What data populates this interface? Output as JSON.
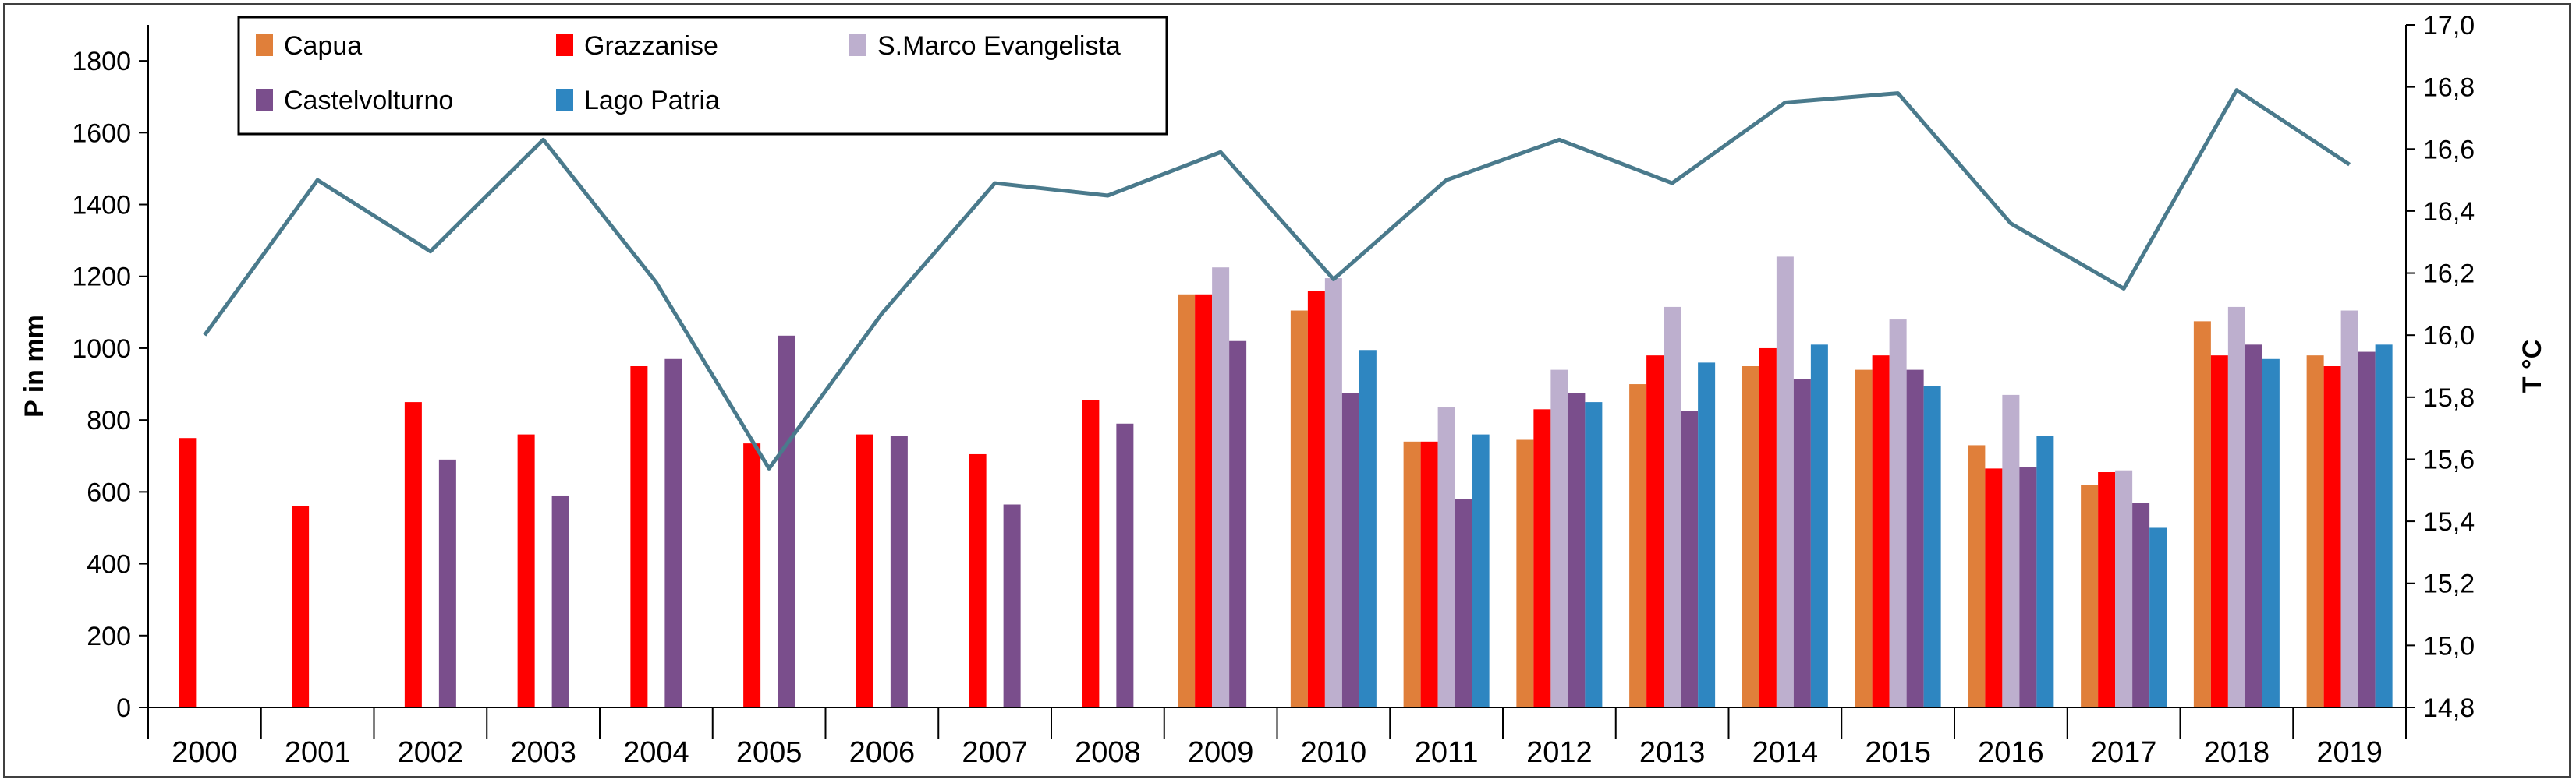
{
  "chart_data": {
    "type": "bar",
    "categories": [
      "2000",
      "2001",
      "2002",
      "2003",
      "2004",
      "2005",
      "2006",
      "2007",
      "2008",
      "2009",
      "2010",
      "2011",
      "2012",
      "2013",
      "2014",
      "2015",
      "2016",
      "2017",
      "2018",
      "2019"
    ],
    "series": [
      {
        "name": "Capua",
        "color": "#E07F3A",
        "values": [
          null,
          null,
          null,
          null,
          null,
          null,
          null,
          null,
          null,
          1150,
          1105,
          740,
          745,
          900,
          950,
          940,
          730,
          620,
          1075,
          980
        ]
      },
      {
        "name": "Grazzanise",
        "color": "#FF0000",
        "values": [
          750,
          560,
          850,
          760,
          950,
          735,
          760,
          705,
          855,
          1150,
          1160,
          740,
          830,
          980,
          1000,
          980,
          665,
          655,
          980,
          950
        ]
      },
      {
        "name": "S.Marco Evangelista",
        "color": "#BDAFCE",
        "values": [
          null,
          null,
          null,
          null,
          null,
          null,
          null,
          null,
          null,
          1225,
          1195,
          835,
          940,
          1115,
          1255,
          1080,
          870,
          660,
          1115,
          1105
        ]
      },
      {
        "name": "Castelvolturno",
        "color": "#7A4E8C",
        "values": [
          null,
          null,
          690,
          590,
          970,
          1035,
          755,
          565,
          790,
          1020,
          875,
          580,
          875,
          825,
          915,
          940,
          670,
          570,
          1010,
          990
        ]
      },
      {
        "name": "Lago Patria",
        "color": "#2E86C1",
        "values": [
          null,
          null,
          null,
          null,
          null,
          null,
          null,
          null,
          null,
          null,
          995,
          760,
          850,
          960,
          1010,
          895,
          755,
          500,
          970,
          1010
        ]
      }
    ],
    "line_series": {
      "name": "",
      "color": "#4A7A8C",
      "axis": "right",
      "values": [
        16.0,
        16.5,
        16.27,
        16.63,
        16.17,
        15.57,
        16.07,
        16.49,
        16.45,
        16.59,
        16.18,
        16.5,
        16.63,
        16.49,
        16.75,
        16.78,
        16.36,
        16.15,
        16.79,
        16.55
      ]
    },
    "xlabel": "",
    "ylabel": "P in mm",
    "y2label": "T °C",
    "ylim": [
      0,
      1900
    ],
    "yticks": [
      "0",
      "200",
      "400",
      "600",
      "800",
      "1000",
      "1200",
      "1400",
      "1600",
      "1800"
    ],
    "y2lim": [
      14.8,
      17.0
    ],
    "y2ticks": [
      "14,8",
      "15,0",
      "15,2",
      "15,4",
      "15,6",
      "15,8",
      "16,0",
      "16,2",
      "16,4",
      "16,6",
      "16,8",
      "17,0"
    ],
    "grid": false,
    "legend_position": "top-left"
  }
}
